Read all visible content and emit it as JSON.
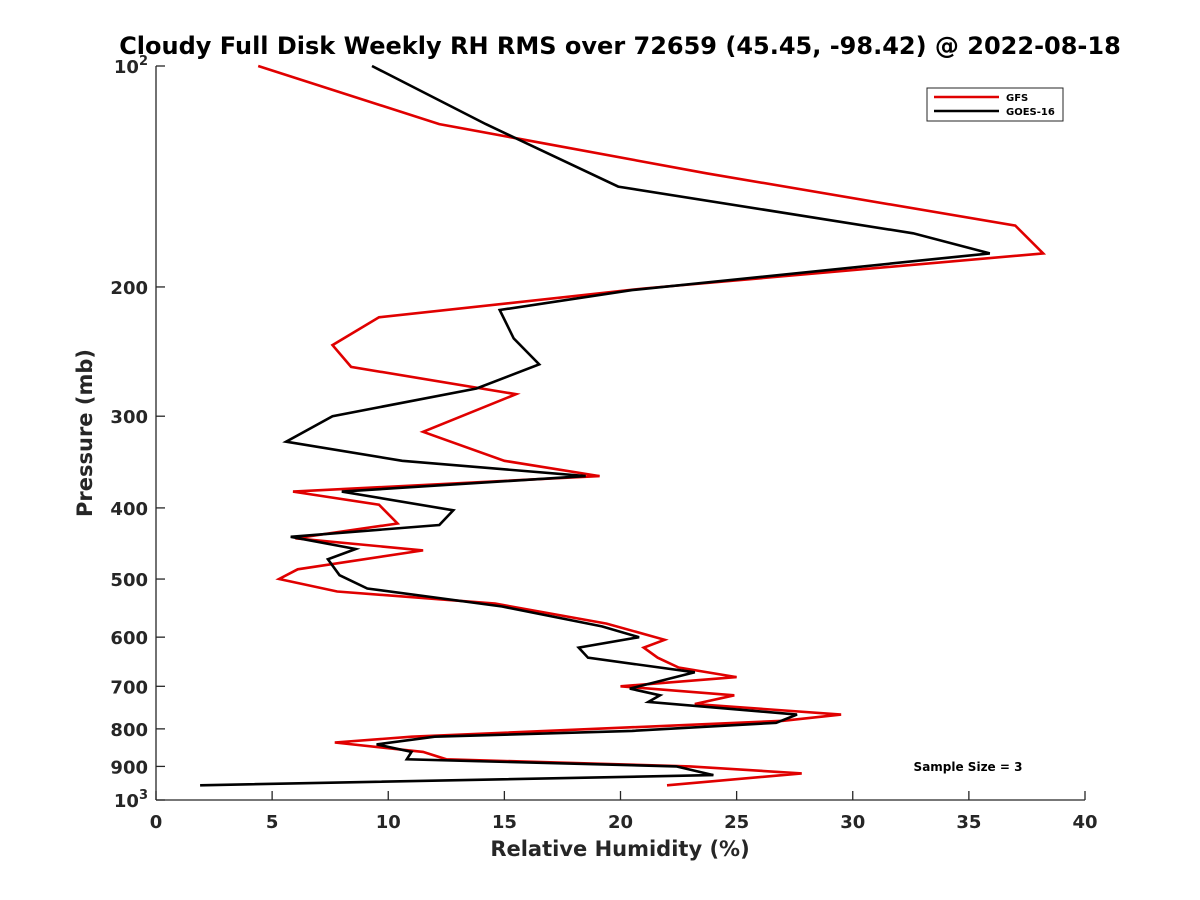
{
  "chart_data": {
    "type": "line",
    "title": "Cloudy Full Disk Weekly RH RMS over 72659 (45.45, -98.42) @ 2022-08-18",
    "xlabel": "Relative Humidity (%)",
    "ylabel": "Pressure (mb)",
    "xlim": [
      0,
      40
    ],
    "ylim": [
      100,
      1000
    ],
    "yscale": "log",
    "y_reversed": true,
    "xticks": [
      0,
      5,
      10,
      15,
      20,
      25,
      30,
      35,
      40
    ],
    "yticks": [
      {
        "value": 100,
        "base": "10",
        "exp": "2"
      },
      {
        "value": 200,
        "label": "200"
      },
      {
        "value": 300,
        "label": "300"
      },
      {
        "value": 400,
        "label": "400"
      },
      {
        "value": 500,
        "label": "500"
      },
      {
        "value": 600,
        "label": "600"
      },
      {
        "value": 700,
        "label": "700"
      },
      {
        "value": 800,
        "label": "800"
      },
      {
        "value": 900,
        "label": "900"
      },
      {
        "value": 1000,
        "base": "10",
        "exp": "3"
      }
    ],
    "legend_position": "top-right",
    "grid": false,
    "annotation": "Sample Size = 3",
    "series": [
      {
        "name": "GFS",
        "color": "#e00000",
        "points": [
          [
            4.4,
            100
          ],
          [
            12.2,
            120
          ],
          [
            23.7,
            140
          ],
          [
            37.0,
            165
          ],
          [
            38.2,
            180
          ],
          [
            21.0,
            201
          ],
          [
            9.6,
            220
          ],
          [
            7.6,
            240
          ],
          [
            8.4,
            257
          ],
          [
            15.5,
            280
          ],
          [
            11.5,
            315
          ],
          [
            15.0,
            345
          ],
          [
            19.1,
            362
          ],
          [
            5.9,
            380
          ],
          [
            9.6,
            396
          ],
          [
            10.4,
            420
          ],
          [
            6.0,
            440
          ],
          [
            11.5,
            457
          ],
          [
            6.1,
            485
          ],
          [
            5.3,
            500
          ],
          [
            7.8,
            520
          ],
          [
            14.6,
            540
          ],
          [
            19.4,
            575
          ],
          [
            21.9,
            605
          ],
          [
            21.0,
            620
          ],
          [
            21.6,
            640
          ],
          [
            22.5,
            660
          ],
          [
            25.0,
            680
          ],
          [
            20.0,
            700
          ],
          [
            24.9,
            720
          ],
          [
            23.2,
            740
          ],
          [
            29.5,
            765
          ],
          [
            27.0,
            780
          ],
          [
            11.0,
            820
          ],
          [
            7.7,
            835
          ],
          [
            11.5,
            860
          ],
          [
            12.5,
            880
          ],
          [
            23.0,
            900
          ],
          [
            27.8,
            920
          ],
          [
            22.0,
            955
          ]
        ]
      },
      {
        "name": "GOES-16",
        "color": "#000000",
        "points": [
          [
            9.3,
            100
          ],
          [
            14.2,
            120
          ],
          [
            19.9,
            146
          ],
          [
            32.6,
            169
          ],
          [
            35.9,
            180
          ],
          [
            20.5,
            202
          ],
          [
            14.8,
            215
          ],
          [
            15.4,
            235
          ],
          [
            16.5,
            255
          ],
          [
            13.8,
            275
          ],
          [
            7.6,
            300
          ],
          [
            5.6,
            325
          ],
          [
            10.6,
            345
          ],
          [
            18.5,
            362
          ],
          [
            8.0,
            380
          ],
          [
            12.8,
            403
          ],
          [
            12.2,
            422
          ],
          [
            5.8,
            438
          ],
          [
            8.6,
            455
          ],
          [
            7.4,
            470
          ],
          [
            7.9,
            494
          ],
          [
            9.1,
            515
          ],
          [
            14.9,
            545
          ],
          [
            19.2,
            580
          ],
          [
            20.8,
            600
          ],
          [
            18.2,
            620
          ],
          [
            18.6,
            640
          ],
          [
            23.2,
            670
          ],
          [
            20.4,
            705
          ],
          [
            21.7,
            720
          ],
          [
            21.2,
            735
          ],
          [
            27.6,
            765
          ],
          [
            26.7,
            785
          ],
          [
            20.5,
            805
          ],
          [
            12.0,
            820
          ],
          [
            9.5,
            840
          ],
          [
            11.0,
            860
          ],
          [
            10.8,
            880
          ],
          [
            22.4,
            900
          ],
          [
            24.0,
            925
          ],
          [
            1.9,
            955
          ]
        ]
      }
    ]
  }
}
